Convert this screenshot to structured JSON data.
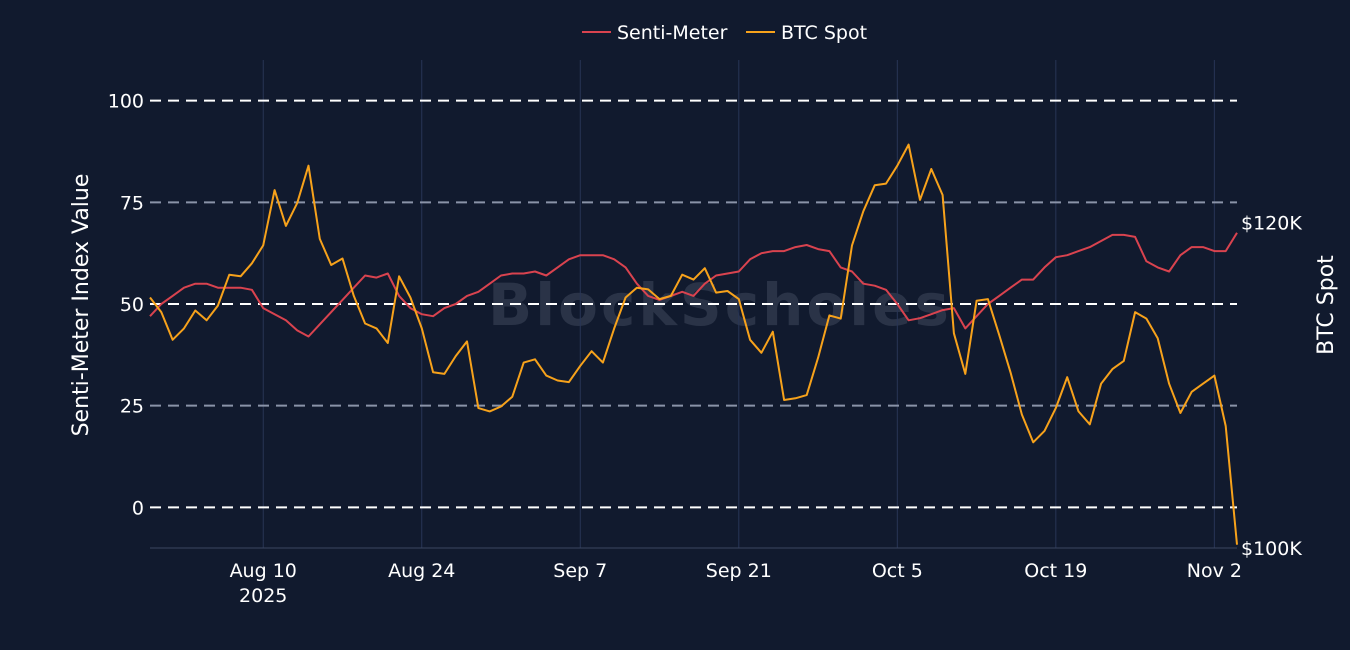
{
  "watermark": "BlockScholes",
  "chart_data": {
    "type": "line",
    "y_left": {
      "label": "Senti-Meter Index Value",
      "range": [
        -10,
        110
      ],
      "ticks": [
        0,
        25,
        50,
        75,
        100
      ],
      "gridlines": "dashed"
    },
    "y_right": {
      "label": "BTC Spot",
      "range": [
        100000,
        130000
      ],
      "ticks": [
        100000,
        120000
      ],
      "tick_labels": [
        "$100K",
        "$120K"
      ]
    },
    "x": {
      "range": [
        "2025-07-31",
        "2025-11-04"
      ],
      "ticks": [
        {
          "date": "2025-08-10",
          "label": "Aug 10",
          "sublabel": "2025"
        },
        {
          "date": "2025-08-24",
          "label": "Aug 24",
          "sublabel": ""
        },
        {
          "date": "2025-09-07",
          "label": "Sep 7",
          "sublabel": ""
        },
        {
          "date": "2025-09-21",
          "label": "Sep 21",
          "sublabel": ""
        },
        {
          "date": "2025-10-05",
          "label": "Oct 5",
          "sublabel": ""
        },
        {
          "date": "2025-10-19",
          "label": "Oct 19",
          "sublabel": ""
        },
        {
          "date": "2025-11-02",
          "label": "Nov 2",
          "sublabel": ""
        }
      ]
    },
    "legend": {
      "placement": "top-center"
    },
    "series": [
      {
        "name": "Senti-Meter",
        "axis": "left",
        "color": "#d9434f",
        "points": [
          [
            "2025-07-31",
            47
          ],
          [
            "2025-08-01",
            50
          ],
          [
            "2025-08-02",
            52
          ],
          [
            "2025-08-03",
            54
          ],
          [
            "2025-08-04",
            55
          ],
          [
            "2025-08-05",
            55
          ],
          [
            "2025-08-06",
            54
          ],
          [
            "2025-08-07",
            54
          ],
          [
            "2025-08-08",
            54
          ],
          [
            "2025-08-09",
            53.5
          ],
          [
            "2025-08-10",
            49
          ],
          [
            "2025-08-11",
            47.5
          ],
          [
            "2025-08-12",
            46
          ],
          [
            "2025-08-13",
            43.5
          ],
          [
            "2025-08-14",
            42
          ],
          [
            "2025-08-15",
            45
          ],
          [
            "2025-08-16",
            48
          ],
          [
            "2025-08-17",
            51
          ],
          [
            "2025-08-18",
            54
          ],
          [
            "2025-08-19",
            57
          ],
          [
            "2025-08-20",
            56.5
          ],
          [
            "2025-08-21",
            57.5
          ],
          [
            "2025-08-22",
            52
          ],
          [
            "2025-08-23",
            49
          ],
          [
            "2025-08-24",
            47.5
          ],
          [
            "2025-08-25",
            47
          ],
          [
            "2025-08-26",
            49
          ],
          [
            "2025-08-27",
            50
          ],
          [
            "2025-08-28",
            52
          ],
          [
            "2025-08-29",
            53
          ],
          [
            "2025-08-30",
            55
          ],
          [
            "2025-08-31",
            57
          ],
          [
            "2025-09-01",
            57.5
          ],
          [
            "2025-09-02",
            57.5
          ],
          [
            "2025-09-03",
            58
          ],
          [
            "2025-09-04",
            57
          ],
          [
            "2025-09-05",
            59
          ],
          [
            "2025-09-06",
            61
          ],
          [
            "2025-09-07",
            62
          ],
          [
            "2025-09-08",
            62
          ],
          [
            "2025-09-09",
            62
          ],
          [
            "2025-09-10",
            61
          ],
          [
            "2025-09-11",
            59
          ],
          [
            "2025-09-12",
            55
          ],
          [
            "2025-09-13",
            52
          ],
          [
            "2025-09-14",
            51
          ],
          [
            "2025-09-15",
            52
          ],
          [
            "2025-09-16",
            53
          ],
          [
            "2025-09-17",
            52
          ],
          [
            "2025-09-18",
            55
          ],
          [
            "2025-09-19",
            57
          ],
          [
            "2025-09-20",
            57.5
          ],
          [
            "2025-09-21",
            58
          ],
          [
            "2025-09-22",
            61
          ],
          [
            "2025-09-23",
            62.5
          ],
          [
            "2025-09-24",
            63
          ],
          [
            "2025-09-25",
            63
          ],
          [
            "2025-09-26",
            64
          ],
          [
            "2025-09-27",
            64.5
          ],
          [
            "2025-09-28",
            63.5
          ],
          [
            "2025-09-29",
            63
          ],
          [
            "2025-09-30",
            59
          ],
          [
            "2025-10-01",
            58
          ],
          [
            "2025-10-02",
            55
          ],
          [
            "2025-10-03",
            54.5
          ],
          [
            "2025-10-04",
            53.5
          ],
          [
            "2025-10-05",
            50
          ],
          [
            "2025-10-06",
            46
          ],
          [
            "2025-10-07",
            46.5
          ],
          [
            "2025-10-08",
            47.5
          ],
          [
            "2025-10-09",
            48.5
          ],
          [
            "2025-10-10",
            49
          ],
          [
            "2025-10-11",
            44
          ],
          [
            "2025-10-12",
            47
          ],
          [
            "2025-10-13",
            50
          ],
          [
            "2025-10-14",
            52
          ],
          [
            "2025-10-15",
            54
          ],
          [
            "2025-10-16",
            56
          ],
          [
            "2025-10-17",
            56
          ],
          [
            "2025-10-18",
            59
          ],
          [
            "2025-10-19",
            61.5
          ],
          [
            "2025-10-20",
            62
          ],
          [
            "2025-10-21",
            63
          ],
          [
            "2025-10-22",
            64
          ],
          [
            "2025-10-23",
            65.5
          ],
          [
            "2025-10-24",
            67
          ],
          [
            "2025-10-25",
            67
          ],
          [
            "2025-10-26",
            66.5
          ],
          [
            "2025-10-27",
            60.5
          ],
          [
            "2025-10-28",
            59
          ],
          [
            "2025-10-29",
            58
          ],
          [
            "2025-10-30",
            62
          ],
          [
            "2025-10-31",
            64
          ],
          [
            "2025-11-01",
            64
          ],
          [
            "2025-11-02",
            63
          ],
          [
            "2025-11-03",
            63
          ],
          [
            "2025-11-04",
            67.5
          ]
        ]
      },
      {
        "name": "BTC Spot",
        "axis": "right",
        "color": "#f7a21b",
        "points": [
          [
            "2025-07-31",
            115400
          ],
          [
            "2025-08-01",
            114500
          ],
          [
            "2025-08-02",
            112800
          ],
          [
            "2025-08-03",
            113500
          ],
          [
            "2025-08-04",
            114600
          ],
          [
            "2025-08-05",
            114000
          ],
          [
            "2025-08-06",
            114900
          ],
          [
            "2025-08-07",
            116800
          ],
          [
            "2025-08-08",
            116700
          ],
          [
            "2025-08-09",
            117500
          ],
          [
            "2025-08-10",
            118600
          ],
          [
            "2025-08-11",
            122000
          ],
          [
            "2025-08-12",
            119800
          ],
          [
            "2025-08-13",
            121200
          ],
          [
            "2025-08-14",
            123500
          ],
          [
            "2025-08-15",
            119000
          ],
          [
            "2025-08-16",
            117400
          ],
          [
            "2025-08-17",
            117800
          ],
          [
            "2025-08-18",
            115500
          ],
          [
            "2025-08-19",
            113800
          ],
          [
            "2025-08-20",
            113500
          ],
          [
            "2025-08-21",
            112600
          ],
          [
            "2025-08-22",
            116700
          ],
          [
            "2025-08-23",
            115400
          ],
          [
            "2025-08-24",
            113500
          ],
          [
            "2025-08-25",
            110800
          ],
          [
            "2025-08-26",
            110700
          ],
          [
            "2025-08-27",
            111800
          ],
          [
            "2025-08-28",
            112700
          ],
          [
            "2025-08-29",
            108600
          ],
          [
            "2025-08-30",
            108400
          ],
          [
            "2025-08-31",
            108700
          ],
          [
            "2025-09-01",
            109300
          ],
          [
            "2025-09-02",
            111400
          ],
          [
            "2025-09-03",
            111600
          ],
          [
            "2025-09-04",
            110600
          ],
          [
            "2025-09-05",
            110300
          ],
          [
            "2025-09-06",
            110200
          ],
          [
            "2025-09-07",
            111200
          ],
          [
            "2025-09-08",
            112100
          ],
          [
            "2025-09-09",
            111400
          ],
          [
            "2025-09-10",
            113500
          ],
          [
            "2025-09-11",
            115400
          ],
          [
            "2025-09-12",
            116000
          ],
          [
            "2025-09-13",
            115900
          ],
          [
            "2025-09-14",
            115300
          ],
          [
            "2025-09-15",
            115500
          ],
          [
            "2025-09-16",
            116800
          ],
          [
            "2025-09-17",
            116500
          ],
          [
            "2025-09-18",
            117200
          ],
          [
            "2025-09-19",
            115700
          ],
          [
            "2025-09-20",
            115800
          ],
          [
            "2025-09-21",
            115300
          ],
          [
            "2025-09-22",
            112800
          ],
          [
            "2025-09-23",
            112000
          ],
          [
            "2025-09-24",
            113300
          ],
          [
            "2025-09-25",
            109100
          ],
          [
            "2025-09-26",
            109200
          ],
          [
            "2025-09-27",
            109400
          ],
          [
            "2025-09-28",
            111700
          ],
          [
            "2025-09-29",
            114300
          ],
          [
            "2025-09-30",
            114100
          ],
          [
            "2025-10-01",
            118600
          ],
          [
            "2025-10-02",
            120700
          ],
          [
            "2025-10-03",
            122300
          ],
          [
            "2025-10-04",
            122400
          ],
          [
            "2025-10-05",
            123500
          ],
          [
            "2025-10-06",
            124800
          ],
          [
            "2025-10-07",
            121400
          ],
          [
            "2025-10-08",
            123300
          ],
          [
            "2025-10-09",
            121700
          ],
          [
            "2025-10-10",
            113200
          ],
          [
            "2025-10-11",
            110700
          ],
          [
            "2025-10-12",
            115200
          ],
          [
            "2025-10-13",
            115300
          ],
          [
            "2025-10-14",
            113100
          ],
          [
            "2025-10-15",
            110800
          ],
          [
            "2025-10-16",
            108200
          ],
          [
            "2025-10-17",
            106500
          ],
          [
            "2025-10-18",
            107200
          ],
          [
            "2025-10-19",
            108600
          ],
          [
            "2025-10-20",
            110500
          ],
          [
            "2025-10-21",
            108400
          ],
          [
            "2025-10-22",
            107600
          ],
          [
            "2025-10-23",
            110100
          ],
          [
            "2025-10-24",
            111000
          ],
          [
            "2025-10-25",
            111500
          ],
          [
            "2025-10-26",
            114500
          ],
          [
            "2025-10-27",
            114100
          ],
          [
            "2025-10-28",
            112900
          ],
          [
            "2025-10-29",
            110100
          ],
          [
            "2025-10-30",
            108300
          ],
          [
            "2025-10-31",
            109600
          ],
          [
            "2025-11-01",
            110100
          ],
          [
            "2025-11-02",
            110600
          ],
          [
            "2025-11-03",
            107500
          ],
          [
            "2025-11-04",
            100200
          ]
        ]
      }
    ]
  }
}
